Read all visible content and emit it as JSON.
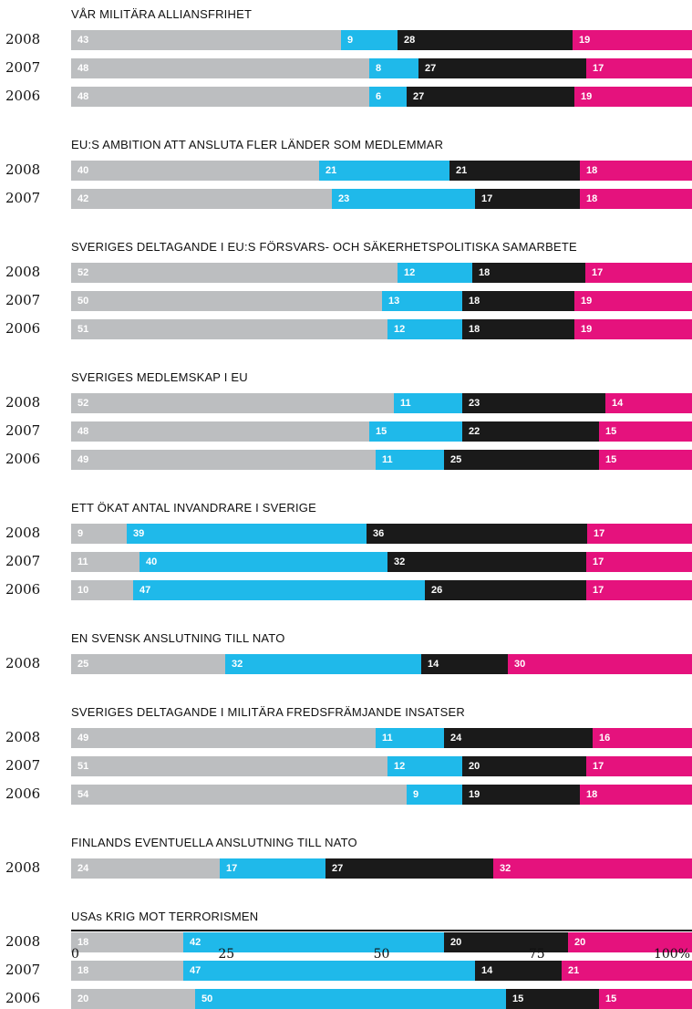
{
  "chart_data": {
    "type": "bar",
    "orientation": "horizontal-stacked-100",
    "colors": [
      "#bcbec0",
      "#1fb9ea",
      "#1a1a1a",
      "#e5127d"
    ],
    "xlim": [
      0,
      100
    ],
    "xticks": [
      "0",
      "25",
      "50",
      "75",
      "100%"
    ],
    "groups": [
      {
        "title": "VÅR MILITÄRA ALLIANSFRIHET",
        "rows": [
          {
            "year": "2008",
            "values": [
              43,
              9,
              28,
              19
            ]
          },
          {
            "year": "2007",
            "values": [
              48,
              8,
              27,
              17
            ]
          },
          {
            "year": "2006",
            "values": [
              48,
              6,
              27,
              19
            ]
          }
        ]
      },
      {
        "title": "EU:S AMBITION ATT ANSLUTA FLER LÄNDER SOM MEDLEMMAR",
        "rows": [
          {
            "year": "2008",
            "values": [
              40,
              21,
              21,
              18
            ]
          },
          {
            "year": "2007",
            "values": [
              42,
              23,
              17,
              18
            ]
          }
        ]
      },
      {
        "title": "SVERIGES DELTAGANDE I EU:S FÖRSVARS- OCH SÄKERHETSPOLITISKA SAMARBETE",
        "rows": [
          {
            "year": "2008",
            "values": [
              52,
              12,
              18,
              17
            ]
          },
          {
            "year": "2007",
            "values": [
              50,
              13,
              18,
              19
            ]
          },
          {
            "year": "2006",
            "values": [
              51,
              12,
              18,
              19
            ]
          }
        ]
      },
      {
        "title": "SVERIGES MEDLEMSKAP I EU",
        "rows": [
          {
            "year": "2008",
            "values": [
              52,
              11,
              23,
              14
            ]
          },
          {
            "year": "2007",
            "values": [
              48,
              15,
              22,
              15
            ]
          },
          {
            "year": "2006",
            "values": [
              49,
              11,
              25,
              15
            ]
          }
        ]
      },
      {
        "title": "ETT ÖKAT ANTAL INVANDRARE I SVERIGE",
        "rows": [
          {
            "year": "2008",
            "values": [
              9,
              39,
              36,
              17
            ]
          },
          {
            "year": "2007",
            "values": [
              11,
              40,
              32,
              17
            ]
          },
          {
            "year": "2006",
            "values": [
              10,
              47,
              26,
              17
            ]
          }
        ]
      },
      {
        "title": "EN SVENSK ANSLUTNING TILL NATO",
        "rows": [
          {
            "year": "2008",
            "values": [
              25,
              32,
              14,
              30
            ]
          }
        ]
      },
      {
        "title": "SVERIGES DELTAGANDE I MILITÄRA FREDSFRÄMJANDE INSATSER",
        "rows": [
          {
            "year": "2008",
            "values": [
              49,
              11,
              24,
              16
            ]
          },
          {
            "year": "2007",
            "values": [
              51,
              12,
              20,
              17
            ]
          },
          {
            "year": "2006",
            "values": [
              54,
              9,
              19,
              18
            ]
          }
        ]
      },
      {
        "title": "FINLANDS EVENTUELLA ANSLUTNING TILL NATO",
        "rows": [
          {
            "year": "2008",
            "values": [
              24,
              17,
              27,
              32
            ]
          }
        ]
      },
      {
        "title": "USAs KRIG MOT TERRORISMEN",
        "rows": [
          {
            "year": "2008",
            "values": [
              18,
              42,
              20,
              20
            ]
          },
          {
            "year": "2007",
            "values": [
              18,
              47,
              14,
              21
            ]
          },
          {
            "year": "2006",
            "values": [
              20,
              50,
              15,
              15
            ]
          }
        ]
      }
    ]
  }
}
